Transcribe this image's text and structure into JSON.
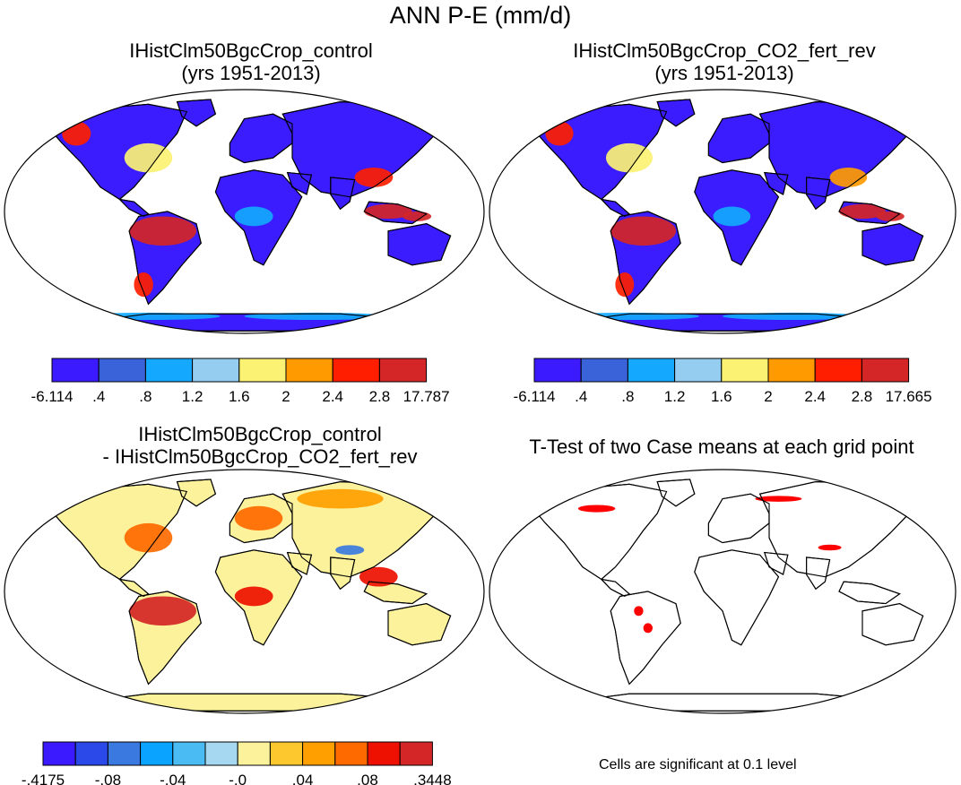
{
  "figure_title": "ANN P-E (mm/d)",
  "chart_data": [
    {
      "type": "heatmap",
      "title_lines": [
        "IHistClm50BgcCrop_control",
        "(yrs 1951-2013)"
      ],
      "colorbar": {
        "labels": [
          "-6.114",
          ".4",
          ".8",
          "1.2",
          "1.6",
          "2",
          "2.4",
          "2.8",
          "17.787"
        ],
        "colors": [
          "#3b1aff",
          "#3a63d9",
          "#14a9ff",
          "#94cdf0",
          "#fbf273",
          "#ff9b00",
          "#ff1e00",
          "#d42626"
        ]
      },
      "fields": {
        "ocean": "#ffffff",
        "default_land": "#3a1cff",
        "regions": [
          {
            "name": "Amazon",
            "value": 3.2
          },
          {
            "name": "Maritime Continent",
            "value": 3.0
          },
          {
            "name": "Eastern North America",
            "value": 1.8
          },
          {
            "name": "Pacific Northwest",
            "value": 2.6
          },
          {
            "name": "South China",
            "value": 2.4
          },
          {
            "name": "Central Africa",
            "value": 1.0
          },
          {
            "name": "Southern Chile",
            "value": 2.6
          },
          {
            "name": "Antarctic coast",
            "value": 0.9
          }
        ]
      }
    },
    {
      "type": "heatmap",
      "title_lines": [
        "IHistClm50BgcCrop_CO2_fert_rev",
        "(yrs 1951-2013)"
      ],
      "colorbar": {
        "labels": [
          "-6.114",
          ".4",
          ".8",
          "1.2",
          "1.6",
          "2",
          "2.4",
          "2.8",
          "17.665"
        ],
        "colors": [
          "#3b1aff",
          "#3a63d9",
          "#14a9ff",
          "#94cdf0",
          "#fbf273",
          "#ff9b00",
          "#ff1e00",
          "#d42626"
        ]
      },
      "fields": {
        "ocean": "#ffffff",
        "default_land": "#3a1cff",
        "regions": [
          {
            "name": "Amazon",
            "value": 3.0
          },
          {
            "name": "Maritime Continent",
            "value": 2.9
          },
          {
            "name": "Eastern North America",
            "value": 1.7
          },
          {
            "name": "Pacific Northwest",
            "value": 2.6
          },
          {
            "name": "South China",
            "value": 2.3
          },
          {
            "name": "Central Africa",
            "value": 0.9
          },
          {
            "name": "Southern Chile",
            "value": 2.6
          },
          {
            "name": "Antarctic coast",
            "value": 0.9
          }
        ]
      }
    },
    {
      "type": "heatmap",
      "title_lines": [
        "IHistClm50BgcCrop_control",
        "- IHistClm50BgcCrop_CO2_fert_rev"
      ],
      "colorbar": {
        "labels": [
          "-.4175",
          "-.08",
          "-.04",
          "-.0",
          ".04",
          ".08",
          ".3448"
        ],
        "colors": [
          "#3b1aff",
          "#2b49e8",
          "#3a79df",
          "#0aa3ff",
          "#4bbcf3",
          "#a7d8f1",
          "#fbf29b",
          "#fdc72e",
          "#ff9f00",
          "#ff6a00",
          "#ee1000",
          "#d42626"
        ]
      },
      "fields": {
        "ocean": "#ffffff",
        "default_land": "#fbf29b",
        "regions": [
          {
            "name": "Amazon",
            "value": 0.1
          },
          {
            "name": "Eastern North America",
            "value": 0.07
          },
          {
            "name": "Europe",
            "value": 0.06
          },
          {
            "name": "Siberia",
            "value": 0.05
          },
          {
            "name": "Central Africa",
            "value": 0.08
          },
          {
            "name": "Tibetan Plateau",
            "value": -0.08
          },
          {
            "name": "Southeast Asia",
            "value": 0.08
          },
          {
            "name": "Antarctica",
            "value": 0.0
          }
        ]
      }
    },
    {
      "type": "heatmap",
      "title_lines": [
        "T-Test of two Case means at each grid point"
      ],
      "note": "Cells are significant at 0.1 level",
      "fields": {
        "ocean": "#ffffff",
        "default_land": "#ffffff",
        "significant_color": "#ff0000",
        "significant_regions": [
          "Northwest Russia",
          "Central Canada",
          "Central China",
          "Western Brazil"
        ]
      }
    }
  ]
}
